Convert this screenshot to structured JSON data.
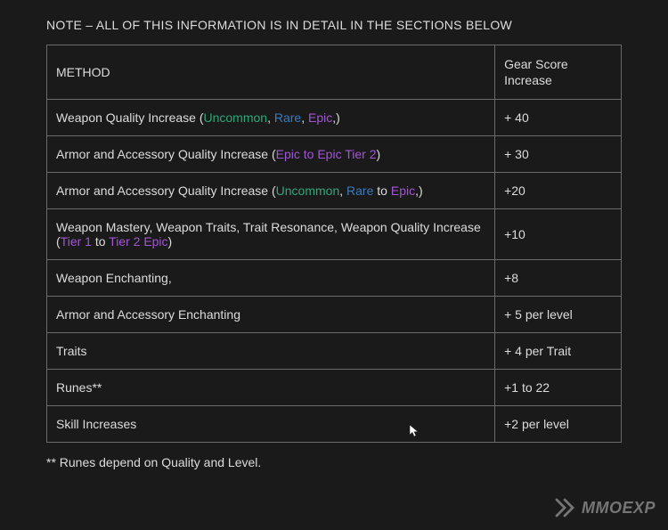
{
  "note": "NOTE – ALL OF THIS INFORMATION IS IN DETAIL IN THE SECTIONS BELOW",
  "footnote": "** Runes depend on Quality and Level.",
  "watermark": "MMOEXP",
  "colors": {
    "background": "#1a1a1a",
    "text": "#dcdcdc",
    "border": "#6a6a6a",
    "uncommon": "#2fa776",
    "rare": "#3a7bbf",
    "epic": "#a255d6",
    "tier": "#a255d6"
  },
  "table": {
    "headers": {
      "method": "METHOD",
      "score": "Gear Score Increase"
    },
    "rows": [
      {
        "method": [
          {
            "t": "Weapon Quality Increase ("
          },
          {
            "t": "Uncommon",
            "c": "uncommon"
          },
          {
            "t": ", "
          },
          {
            "t": "Rare",
            "c": "rare"
          },
          {
            "t": ", "
          },
          {
            "t": "Epic",
            "c": "epic"
          },
          {
            "t": ",)"
          }
        ],
        "score": "+ 40"
      },
      {
        "method": [
          {
            "t": "Armor and Accessory Quality Increase ("
          },
          {
            "t": "Epic to Epic Tier 2",
            "c": "epic"
          },
          {
            "t": ")"
          }
        ],
        "score": "+ 30"
      },
      {
        "method": [
          {
            "t": "Armor and Accessory Quality Increase ("
          },
          {
            "t": "Uncommon",
            "c": "uncommon"
          },
          {
            "t": ", "
          },
          {
            "t": "Rare",
            "c": "rare"
          },
          {
            "t": " to "
          },
          {
            "t": "Epic",
            "c": "epic"
          },
          {
            "t": ",)"
          }
        ],
        "score": "+20"
      },
      {
        "method": [
          {
            "t": "Weapon Mastery, Weapon Traits, Trait Resonance, Weapon Quality Increase ("
          },
          {
            "t": "Tier 1",
            "c": "tier"
          },
          {
            "t": " to "
          },
          {
            "t": "Tier 2 Epic",
            "c": "tier"
          },
          {
            "t": ")"
          }
        ],
        "score": "+10"
      },
      {
        "method": [
          {
            "t": "Weapon Enchanting,"
          }
        ],
        "score": "+8"
      },
      {
        "method": [
          {
            "t": "Armor and Accessory Enchanting"
          }
        ],
        "score": "+ 5 per level"
      },
      {
        "method": [
          {
            "t": "Traits"
          }
        ],
        "score": "+ 4 per Trait"
      },
      {
        "method": [
          {
            "t": "Runes**"
          }
        ],
        "score": "+1 to 22"
      },
      {
        "method": [
          {
            "t": "Skill Increases"
          }
        ],
        "score": "+2 per level"
      }
    ]
  }
}
